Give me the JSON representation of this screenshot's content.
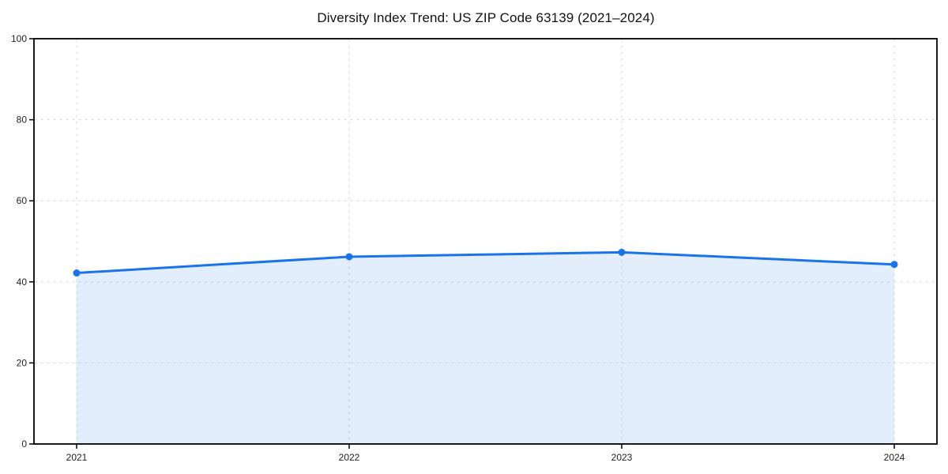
{
  "chart_data": {
    "type": "line",
    "title": "Diversity Index Trend: US ZIP Code 63139 (2021–2024)",
    "categories": [
      "2021",
      "2022",
      "2023",
      "2024"
    ],
    "x": [
      2021,
      2022,
      2023,
      2024
    ],
    "series": [
      {
        "name": "Diversity Index",
        "values": [
          42.2,
          46.2,
          47.3,
          44.3
        ]
      }
    ],
    "xlabel": "",
    "ylabel": "",
    "ylim": [
      0,
      100
    ],
    "yticks": [
      0,
      20,
      40,
      60,
      80,
      100
    ],
    "ytick_labels": [
      "0",
      "20",
      "40",
      "60",
      "80",
      "100"
    ],
    "grid": true,
    "grid_style": "dashed",
    "legend_position": "none",
    "area_fill": true,
    "marker": "circle",
    "colors": {
      "line": "#1a73e8",
      "marker": "#1a73e8",
      "fill": "#1a73e8",
      "fill_opacity": 0.12,
      "grid": "#dedede",
      "spine": "#000000",
      "tick_label": "#222222",
      "background": "#ffffff"
    }
  }
}
